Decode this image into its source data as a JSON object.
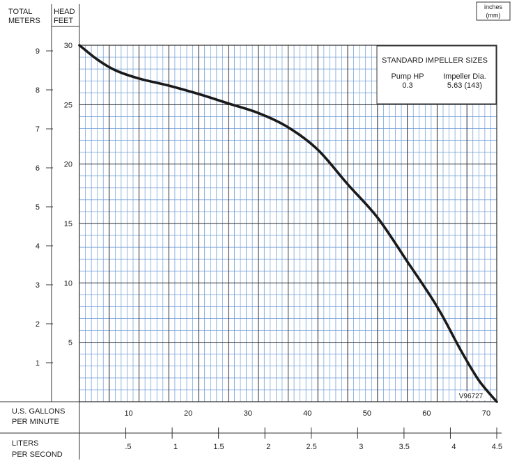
{
  "chart_data": {
    "type": "line",
    "title": "",
    "units_box": {
      "line1": "inches",
      "line2": "(mm)"
    },
    "left_axis": {
      "label_lines": [
        "TOTAL",
        "METERS"
      ],
      "ticks": [
        1,
        2,
        3,
        4,
        5,
        6,
        7,
        8,
        9
      ],
      "tick_labels": [
        "1",
        "2",
        "3",
        "4",
        "5",
        "6",
        "7",
        "8",
        "9"
      ]
    },
    "right_axis": {
      "label_lines": [
        "HEAD",
        "FEET"
      ],
      "ylim": [
        0,
        30
      ],
      "ticks": [
        5,
        10,
        15,
        20,
        25,
        30
      ],
      "tick_labels": [
        "5",
        "10",
        "15",
        "20",
        "25",
        "30"
      ]
    },
    "x_axis_gpm": {
      "label_lines": [
        "U.S. GALLONS",
        "PER MINUTE"
      ],
      "xlim": [
        0,
        70
      ],
      "ticks": [
        10,
        20,
        30,
        40,
        50,
        60,
        70
      ],
      "tick_labels": [
        "10",
        "20",
        "30",
        "40",
        "50",
        "60",
        "70"
      ]
    },
    "x_axis_lps": {
      "label_lines": [
        "LITERS",
        "PER SECOND"
      ],
      "xlim": [
        0,
        4.5
      ],
      "ticks": [
        0.5,
        1,
        1.5,
        2,
        2.5,
        3,
        3.5,
        4,
        4.5
      ],
      "tick_labels": [
        ".5",
        "1",
        "1.5",
        "2",
        "2.5",
        "3",
        "3.5",
        "4",
        "4.5"
      ]
    },
    "grid": true,
    "legend_box": {
      "title": "STANDARD IMPELLER SIZES",
      "col1_header": "Pump HP",
      "col2_header": "Impeller Dia.",
      "col1_value": "0.3",
      "col2_value": "5.63 (143)"
    },
    "series": [
      {
        "x": [
          0,
          3,
          6,
          10,
          15,
          20,
          25,
          30,
          35,
          40,
          45,
          50,
          55,
          60,
          64,
          67,
          70
        ],
        "y": [
          30,
          28.8,
          27.9,
          27.2,
          26.6,
          25.9,
          25.1,
          24.3,
          23.1,
          21.2,
          18.3,
          15.5,
          11.8,
          8,
          4.3,
          1.8,
          0
        ]
      }
    ],
    "annotation": "V96727",
    "colors": {
      "grid_minor": "#6a99d4",
      "grid_major": "#2a2a2a",
      "curve": "#1a1a1a"
    }
  }
}
